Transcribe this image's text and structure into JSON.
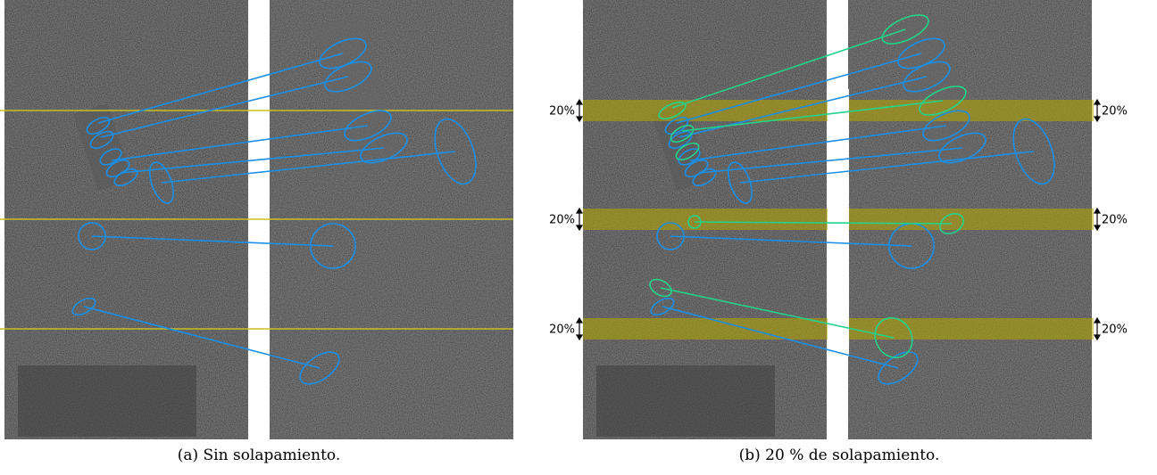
{
  "panels": [
    {
      "caption": "(a) Sin solapamiento."
    },
    {
      "caption": "(b) 20 % de solapamiento.",
      "left_labels": [
        "20%",
        "20%",
        "20%"
      ],
      "right_labels": [
        "20%",
        "20%",
        "20%"
      ]
    }
  ]
}
